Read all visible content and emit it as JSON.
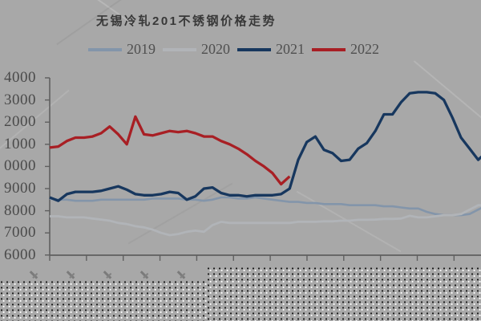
{
  "title": "无锡冷轧201不锈钢价格走势",
  "colors": {
    "background": "#a8a8a8",
    "axis": "#5f5f5f",
    "tick_label_text": "#4a4a4a",
    "legend_text": "#4f4f4f",
    "title_text": "#383838",
    "series_2019": "#8395aa",
    "series_2020": "#b1b4b8",
    "series_2021": "#17375e",
    "series_2022": "#a81f24"
  },
  "legend": {
    "position": "top",
    "items": [
      {
        "label": "2019",
        "color": "#8395aa"
      },
      {
        "label": "2020",
        "color": "#b1b4b8"
      },
      {
        "label": "2021",
        "color": "#17375e"
      },
      {
        "label": "2022",
        "color": "#a81f24"
      }
    ]
  },
  "y_axis": {
    "visible_tick_labels": [
      "4000",
      "3000",
      "2000",
      "1000",
      "0000",
      "9000",
      "8000",
      "7000",
      "6000"
    ],
    "note": "labels are cropped at the left image edge; full values run 14000 down to 6000"
  },
  "x_axis": {
    "tick_count": 12,
    "note": "rotated date labels along the bottom are cropped; only small fragments are visible above a dithered strip",
    "fragment_count": 5
  },
  "chart_data": {
    "type": "line",
    "title": "无锡冷轧201不锈钢价格走势",
    "xlabel": "",
    "ylabel": "",
    "x_unit": "weekly points, Jan–Dec (12 monthly ticks)",
    "ylim": [
      6000,
      14000
    ],
    "y_tick_step": 1000,
    "grid": false,
    "legend_position": "top",
    "series": [
      {
        "name": "2019",
        "color": "#8395aa",
        "values": [
          8550,
          8500,
          8500,
          8450,
          8450,
          8450,
          8500,
          8500,
          8500,
          8500,
          8500,
          8500,
          8550,
          8550,
          8550,
          8550,
          8500,
          8500,
          8450,
          8500,
          8600,
          8600,
          8550,
          8550,
          8600,
          8550,
          8500,
          8450,
          8400,
          8400,
          8350,
          8350,
          8300,
          8300,
          8300,
          8250,
          8250,
          8250,
          8250,
          8200,
          8200,
          8150,
          8100,
          8100,
          7950,
          7850,
          7800,
          7800,
          7800,
          7850,
          8050,
          8250
        ]
      },
      {
        "name": "2020",
        "color": "#b1b4b8",
        "values": [
          7750,
          7750,
          7700,
          7700,
          7700,
          7650,
          7600,
          7550,
          7450,
          7400,
          7300,
          7250,
          7150,
          7000,
          6900,
          6950,
          7050,
          7100,
          7050,
          7350,
          7500,
          7450,
          7450,
          7450,
          7450,
          7450,
          7450,
          7450,
          7450,
          7500,
          7500,
          7500,
          7520,
          7520,
          7550,
          7550,
          7590,
          7590,
          7600,
          7630,
          7630,
          7650,
          7770,
          7700,
          7700,
          7750,
          7800,
          7800,
          7850,
          8050,
          8250,
          8250
        ]
      },
      {
        "name": "2021",
        "color": "#17375e",
        "values": [
          8600,
          8450,
          8750,
          8850,
          8850,
          8850,
          8900,
          9000,
          9100,
          8950,
          8750,
          8700,
          8700,
          8750,
          8850,
          8800,
          8500,
          8650,
          9000,
          9050,
          8800,
          8700,
          8700,
          8650,
          8700,
          8700,
          8700,
          8750,
          9000,
          10300,
          11100,
          11350,
          10750,
          10600,
          10250,
          10300,
          10800,
          11050,
          11600,
          12350,
          12350,
          12900,
          13300,
          13350,
          13350,
          13300,
          13000,
          12200,
          11300,
          10800,
          10300,
          10650
        ]
      },
      {
        "name": "2022",
        "color": "#a81f24",
        "values": [
          10850,
          10900,
          11150,
          11300,
          11300,
          11350,
          11500,
          11800,
          11450,
          11000,
          12250,
          11450,
          11400,
          11500,
          11600,
          11550,
          11600,
          11500,
          11350,
          11350,
          11150,
          11000,
          10800,
          10550,
          10250,
          10000,
          9700,
          9200,
          9550
        ]
      }
    ]
  }
}
